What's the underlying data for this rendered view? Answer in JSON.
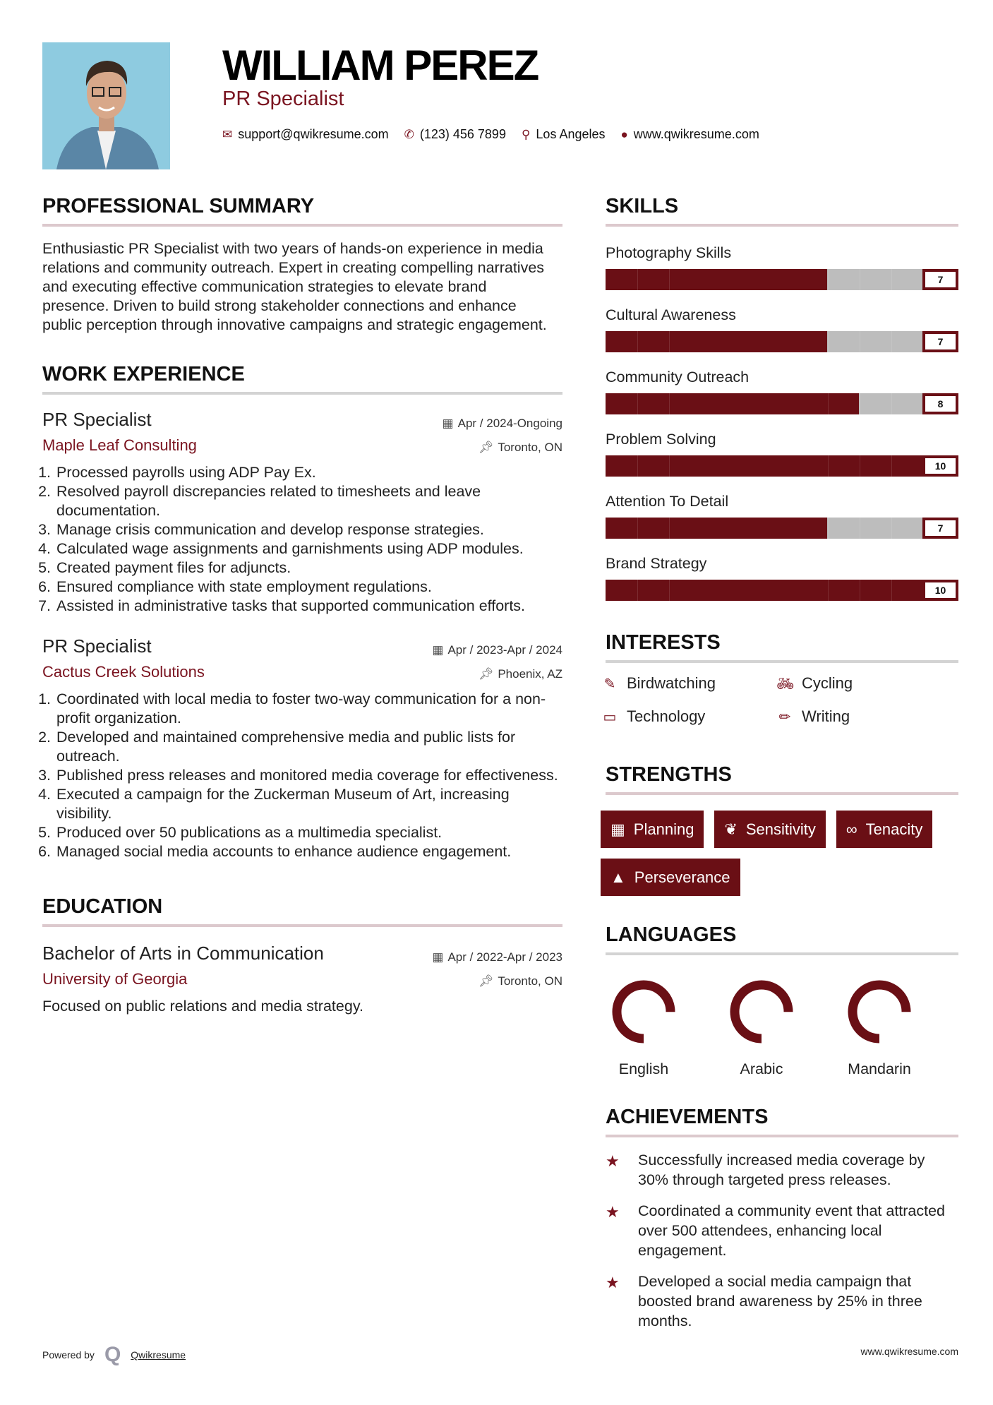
{
  "header": {
    "name": "WILLIAM PEREZ",
    "title": "PR Specialist",
    "email": "support@qwikresume.com",
    "phone": "(123) 456 7899",
    "location": "Los Angeles",
    "website": "www.qwikresume.com"
  },
  "summary": {
    "heading": "PROFESSIONAL SUMMARY",
    "text": "Enthusiastic PR Specialist with two years of hands-on experience in media relations and community outreach. Expert in creating compelling narratives and executing effective communication strategies to elevate brand presence. Driven to build strong stakeholder connections and enhance public perception through innovative campaigns and strategic engagement."
  },
  "experience": {
    "heading": "WORK EXPERIENCE",
    "jobs": [
      {
        "title": "PR Specialist",
        "company": "Maple Leaf Consulting",
        "dates": "Apr / 2024-Ongoing",
        "location": "Toronto, ON",
        "bullets": [
          "Processed payrolls using ADP Pay Ex.",
          "Resolved payroll discrepancies related to timesheets and leave documentation.",
          "Manage crisis communication and develop response strategies.",
          "Calculated wage assignments and garnishments using ADP modules.",
          "Created payment files for adjuncts.",
          "Ensured compliance with state employment regulations.",
          "Assisted in administrative tasks that supported communication efforts."
        ]
      },
      {
        "title": "PR Specialist",
        "company": "Cactus Creek Solutions",
        "dates": "Apr / 2023-Apr / 2024",
        "location": "Phoenix, AZ",
        "bullets": [
          "Coordinated with local media to foster two-way communication for a non-profit organization.",
          "Developed and maintained comprehensive media and public lists for outreach.",
          "Published press releases and monitored media coverage for effectiveness.",
          "Executed a campaign for the Zuckerman Museum of Art, increasing visibility.",
          "Produced over 50 publications as a multimedia specialist.",
          "Managed social media accounts to enhance audience engagement."
        ]
      }
    ]
  },
  "education": {
    "heading": "EDUCATION",
    "degree": "Bachelor of Arts in Communication",
    "school": "University of Georgia",
    "dates": "Apr / 2022-Apr / 2023",
    "location": "Toronto, ON",
    "description": "Focused on public relations and media strategy."
  },
  "skills": {
    "heading": "SKILLS",
    "max": 10,
    "items": [
      {
        "name": "Photography Skills",
        "level": 7
      },
      {
        "name": "Cultural Awareness",
        "level": 7
      },
      {
        "name": "Community Outreach",
        "level": 8
      },
      {
        "name": "Problem Solving",
        "level": 10
      },
      {
        "name": "Attention To Detail",
        "level": 7
      },
      {
        "name": "Brand Strategy",
        "level": 10
      }
    ]
  },
  "interests": {
    "heading": "INTERESTS",
    "items": [
      {
        "label": "Birdwatching",
        "icon": "edit-icon"
      },
      {
        "label": "Cycling",
        "icon": "bicycle-icon"
      },
      {
        "label": "Technology",
        "icon": "laptop-icon"
      },
      {
        "label": "Writing",
        "icon": "pencil-icon"
      }
    ]
  },
  "strengths": {
    "heading": "STRENGTHS",
    "items": [
      {
        "label": "Planning",
        "icon": "calendar-icon"
      },
      {
        "label": "Sensitivity",
        "icon": "leaf-icon"
      },
      {
        "label": "Tenacity",
        "icon": "link-icon"
      },
      {
        "label": "Perseverance",
        "icon": "road-icon"
      }
    ]
  },
  "languages": {
    "heading": "LANGUAGES",
    "items": [
      {
        "name": "English",
        "level": 0.75
      },
      {
        "name": "Arabic",
        "level": 0.75
      },
      {
        "name": "Mandarin",
        "level": 0.75
      }
    ]
  },
  "achievements": {
    "heading": "ACHIEVEMENTS",
    "items": [
      "Successfully increased media coverage by 30% through targeted press releases.",
      "Coordinated a community event that attracted over 500 attendees, enhancing local engagement.",
      "Developed a social media campaign that boosted brand awareness by 25% in three months."
    ]
  },
  "footer": {
    "powered_by": "Powered by",
    "brand": "Qwikresume",
    "website": "www.qwikresume.com"
  },
  "colors": {
    "accent": "#6a0f15",
    "bar_empty": "#bdbdbd"
  }
}
